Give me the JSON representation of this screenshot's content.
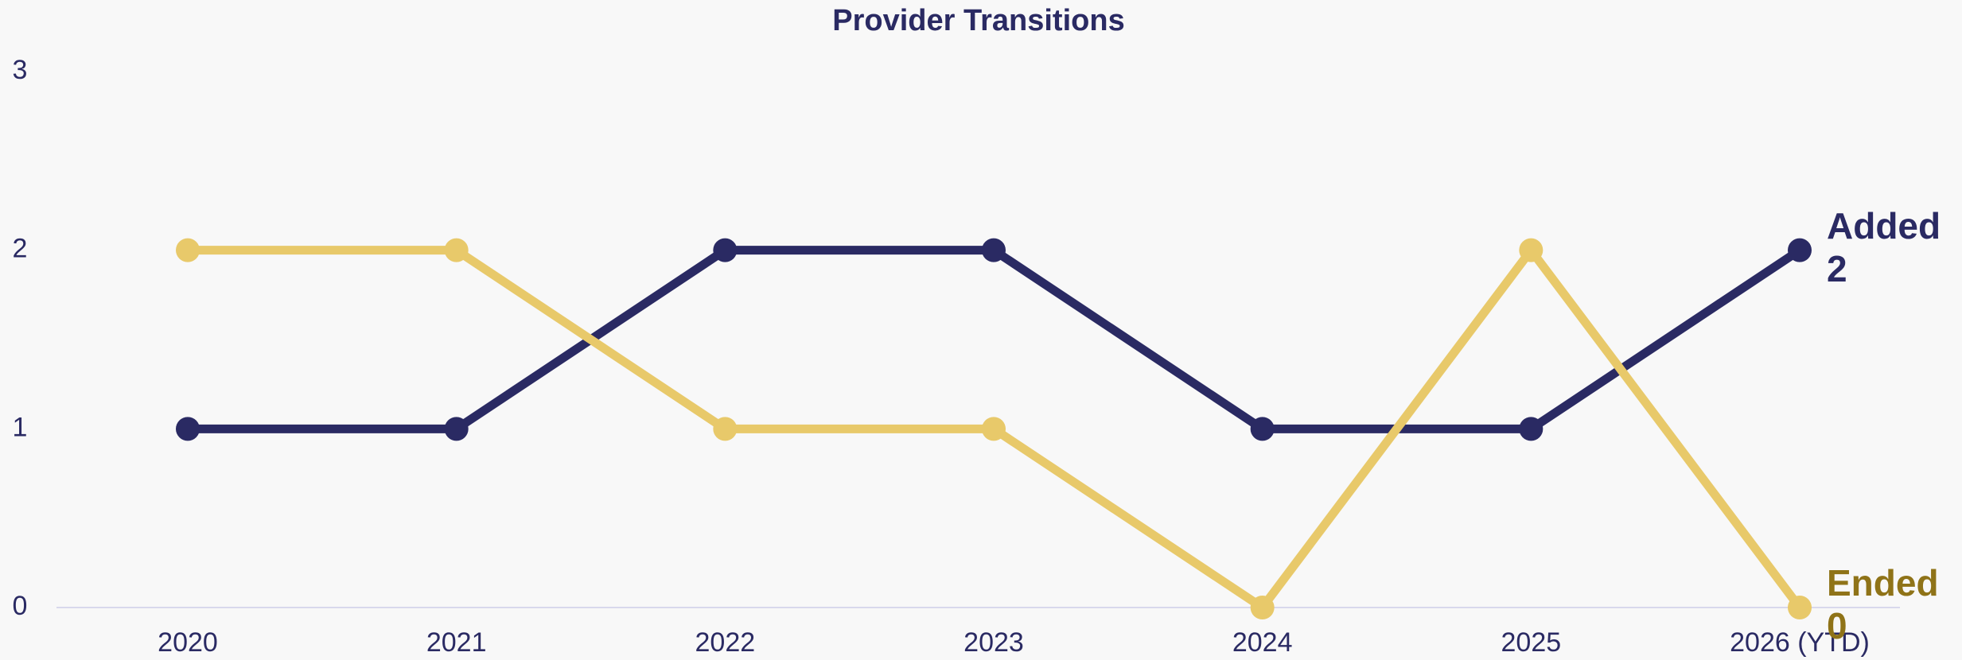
{
  "chart_data": {
    "type": "line",
    "title": "Provider Transitions",
    "categories": [
      "2020",
      "2021",
      "2022",
      "2023",
      "2024",
      "2025",
      "2026 (YTD)"
    ],
    "series": [
      {
        "name": "Added",
        "color": "#2a2a63",
        "label_color": "#2a2a63",
        "values": [
          1,
          1,
          2,
          2,
          1,
          1,
          2
        ]
      },
      {
        "name": "Ended",
        "color": "#e8c96a",
        "label_color": "#8f7318",
        "values": [
          2,
          2,
          1,
          1,
          0,
          2,
          0
        ]
      }
    ],
    "ylim": [
      0,
      3
    ],
    "yticks": [
      0,
      1,
      2,
      3
    ],
    "grid": false
  }
}
